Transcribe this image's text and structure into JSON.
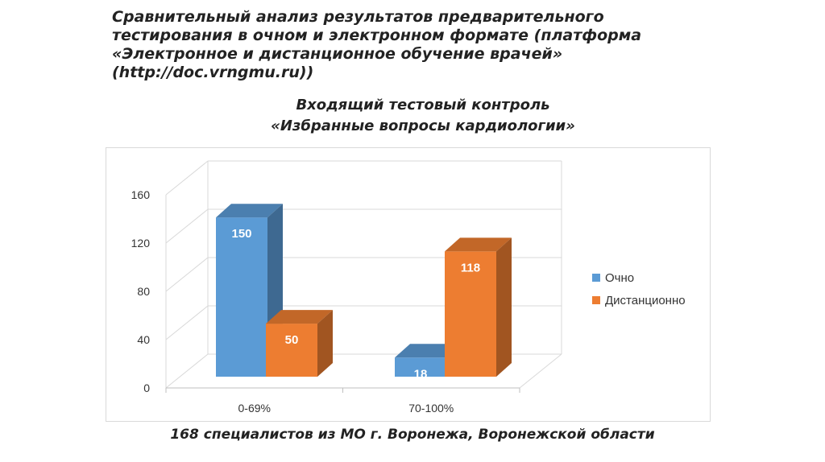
{
  "heading": "Сравнительный анализ результатов предварительного тестирования в очном и электронном формате (платформа «Электронное и дистанционное обучение врачей» (http://doc.vrngmu.ru))",
  "caption": "168 специалистов из МО г. Воронежа, Воронежской области",
  "chart_data": {
    "type": "bar",
    "title": "Входящий тестовый контроль",
    "subtitle": "«Избранные вопросы кардиологии»",
    "categories": [
      "0-69%",
      "70-100%"
    ],
    "series": [
      {
        "name": "Очно",
        "values": [
          150,
          18
        ],
        "color": "#5b9bd5"
      },
      {
        "name": "Дистанционно",
        "values": [
          50,
          118
        ],
        "color": "#ed7d31"
      }
    ],
    "yticks": [
      "0",
      "40",
      "80",
      "120",
      "160"
    ],
    "ylim": [
      0,
      160
    ],
    "grid": true,
    "legend_position": "right",
    "style": "3d-clustered-column"
  }
}
